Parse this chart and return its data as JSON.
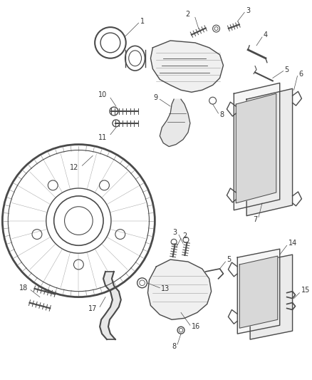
{
  "bg_color": "#ffffff",
  "line_color": "#4a4a4a",
  "fig_width": 4.38,
  "fig_height": 5.33,
  "dpi": 100,
  "font_size": 7.0,
  "font_color": "#333333"
}
